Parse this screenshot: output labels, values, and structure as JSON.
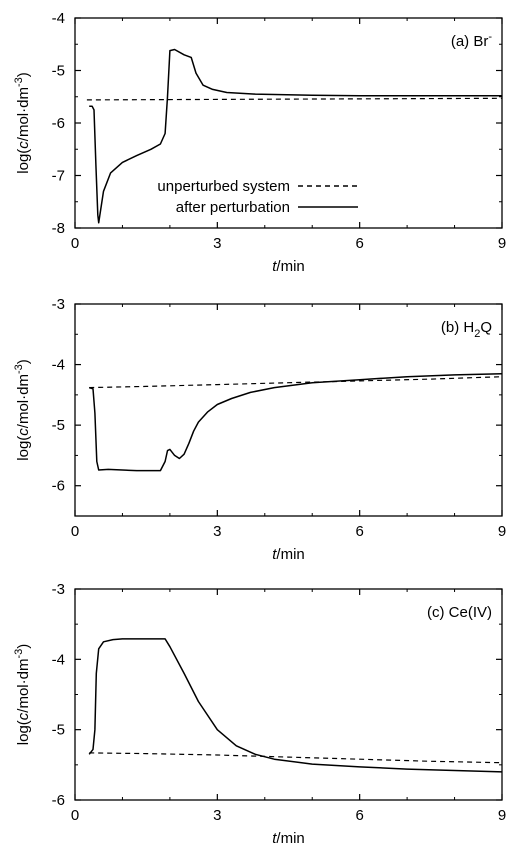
{
  "chart_data": [
    {
      "type": "line",
      "panel_label": {
        "prefix": "(a) Br",
        "sup": "-",
        "sub": "",
        "suffix": ""
      },
      "xlabel": {
        "italic": "t",
        "rest": "/min"
      },
      "ylabel": {
        "pre": "log(",
        "italic": "c",
        "mid": "/mol·dm",
        "sup": "-3",
        "post": ")"
      },
      "xlim": [
        0,
        9
      ],
      "ylim": [
        -8,
        -4
      ],
      "xticks": [
        "0",
        "3",
        "6",
        "9"
      ],
      "yticks": [
        "-4",
        "-5",
        "-6",
        "-7",
        "-8"
      ],
      "legend": {
        "position": "bottom-center",
        "entries": [
          {
            "label": "unperturbed system",
            "style": "dashed"
          },
          {
            "label": "after perturbation",
            "style": "solid"
          }
        ]
      },
      "series": [
        {
          "name": "unperturbed system",
          "style": "dashed",
          "x": [
            0.25,
            9.0
          ],
          "y": [
            -5.56,
            -5.53
          ]
        },
        {
          "name": "after perturbation",
          "style": "solid",
          "x": [
            0.3,
            0.36,
            0.4,
            0.44,
            0.48,
            0.5,
            0.6,
            0.75,
            1.0,
            1.3,
            1.6,
            1.8,
            1.9,
            1.95,
            2.0,
            2.1,
            2.3,
            2.45,
            2.55,
            2.7,
            2.9,
            3.2,
            3.8,
            5.0,
            6.0,
            7.0,
            8.0,
            9.0
          ],
          "y": [
            -5.68,
            -5.68,
            -5.75,
            -6.8,
            -7.75,
            -7.9,
            -7.3,
            -6.95,
            -6.75,
            -6.62,
            -6.5,
            -6.4,
            -6.2,
            -5.5,
            -4.62,
            -4.6,
            -4.7,
            -4.75,
            -5.05,
            -5.28,
            -5.36,
            -5.42,
            -5.45,
            -5.47,
            -5.48,
            -5.48,
            -5.48,
            -5.48
          ]
        }
      ]
    },
    {
      "type": "line",
      "panel_label": {
        "prefix": "(b) H",
        "sup": "",
        "sub": "2",
        "suffix": "Q"
      },
      "xlabel": {
        "italic": "t",
        "rest": "/min"
      },
      "ylabel": {
        "pre": "log(",
        "italic": "c",
        "mid": "/mol·dm",
        "sup": "-3",
        "post": ")"
      },
      "xlim": [
        0,
        9
      ],
      "ylim": [
        -6.5,
        -3
      ],
      "xticks": [
        "0",
        "3",
        "6",
        "9"
      ],
      "yticks": [
        "-3",
        "-4",
        "-5",
        "-6"
      ],
      "series": [
        {
          "name": "unperturbed system",
          "style": "dashed",
          "x": [
            0.3,
            1.5,
            3.0,
            4.5,
            6.0,
            7.5,
            9.0
          ],
          "y": [
            -4.38,
            -4.36,
            -4.33,
            -4.3,
            -4.27,
            -4.24,
            -4.2
          ]
        },
        {
          "name": "after perturbation",
          "style": "solid",
          "x": [
            0.3,
            0.38,
            0.42,
            0.46,
            0.5,
            0.7,
            1.0,
            1.3,
            1.6,
            1.8,
            1.9,
            1.95,
            2.0,
            2.1,
            2.2,
            2.3,
            2.4,
            2.5,
            2.6,
            2.8,
            3.0,
            3.3,
            3.7,
            4.2,
            5.0,
            6.0,
            7.0,
            8.0,
            9.0
          ],
          "y": [
            -4.38,
            -4.4,
            -4.8,
            -5.6,
            -5.74,
            -5.73,
            -5.74,
            -5.75,
            -5.75,
            -5.75,
            -5.6,
            -5.42,
            -5.4,
            -5.5,
            -5.55,
            -5.48,
            -5.3,
            -5.1,
            -4.95,
            -4.78,
            -4.66,
            -4.56,
            -4.46,
            -4.38,
            -4.3,
            -4.25,
            -4.2,
            -4.17,
            -4.15
          ]
        }
      ]
    },
    {
      "type": "line",
      "panel_label": {
        "prefix": "(c) Ce(IV)",
        "sup": "",
        "sub": "",
        "suffix": ""
      },
      "xlabel": {
        "italic": "t",
        "rest": "/min"
      },
      "ylabel": {
        "pre": "log(",
        "italic": "c",
        "mid": "/mol·dm",
        "sup": "-3",
        "post": ")"
      },
      "xlim": [
        0,
        9
      ],
      "ylim": [
        -6,
        -3
      ],
      "xticks": [
        "0",
        "3",
        "6",
        "9"
      ],
      "yticks": [
        "-3",
        "-4",
        "-5",
        "-6"
      ],
      "series": [
        {
          "name": "unperturbed system",
          "style": "dashed",
          "x": [
            0.3,
            1.5,
            3.0,
            4.5,
            6.0,
            7.5,
            9.0
          ],
          "y": [
            -5.33,
            -5.34,
            -5.36,
            -5.39,
            -5.42,
            -5.45,
            -5.47
          ]
        },
        {
          "name": "after perturbation",
          "style": "solid",
          "x": [
            0.3,
            0.38,
            0.42,
            0.45,
            0.5,
            0.6,
            0.8,
            1.0,
            1.3,
            1.6,
            1.8,
            1.9,
            2.0,
            2.3,
            2.6,
            3.0,
            3.4,
            3.8,
            4.2,
            5.0,
            6.0,
            7.0,
            8.0,
            9.0
          ],
          "y": [
            -5.35,
            -5.28,
            -5.0,
            -4.2,
            -3.85,
            -3.75,
            -3.72,
            -3.71,
            -3.71,
            -3.71,
            -3.71,
            -3.71,
            -3.82,
            -4.2,
            -4.6,
            -5.0,
            -5.23,
            -5.35,
            -5.42,
            -5.49,
            -5.53,
            -5.56,
            -5.58,
            -5.6
          ]
        }
      ]
    }
  ]
}
